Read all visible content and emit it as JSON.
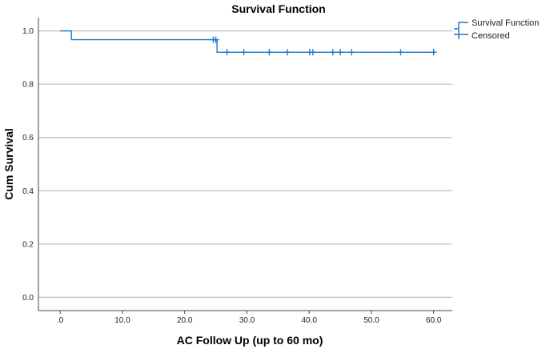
{
  "chart_data": {
    "type": "line",
    "title": "Survival Function",
    "xlabel": "AC Follow Up (up to 60 mo)",
    "ylabel": "Cum Survival",
    "xlim": [
      -3.5,
      63
    ],
    "ylim": [
      -0.05,
      1.05
    ],
    "x_ticks": [
      0,
      10,
      20,
      30,
      40,
      50,
      60
    ],
    "x_tick_labels": [
      ".0",
      "10.0",
      "20.0",
      "30.0",
      "40.0",
      "50.0",
      "60.0"
    ],
    "y_ticks": [
      0,
      0.2,
      0.4,
      0.6,
      0.8,
      1.0
    ],
    "y_tick_labels": [
      "0.0",
      "0.2",
      "0.4",
      "0.6",
      "0.8",
      "1.0"
    ],
    "grid": "horizontal",
    "legend_position": "top-right",
    "color": "#1f77c4",
    "series": [
      {
        "name": "Survival Function",
        "kind": "step",
        "x": [
          0,
          1.8,
          1.8,
          25.2,
          25.2,
          60
        ],
        "y": [
          1.0,
          1.0,
          0.967,
          0.967,
          0.92,
          0.92
        ]
      },
      {
        "name": "Censored",
        "kind": "markers",
        "x": [
          24.6,
          25.0,
          26.8,
          29.5,
          33.6,
          36.5,
          40.1,
          40.6,
          43.8,
          45.0,
          46.8,
          54.7,
          60.0
        ],
        "y": [
          0.967,
          0.967,
          0.92,
          0.92,
          0.92,
          0.92,
          0.92,
          0.92,
          0.92,
          0.92,
          0.92,
          0.92,
          0.92
        ]
      }
    ]
  }
}
